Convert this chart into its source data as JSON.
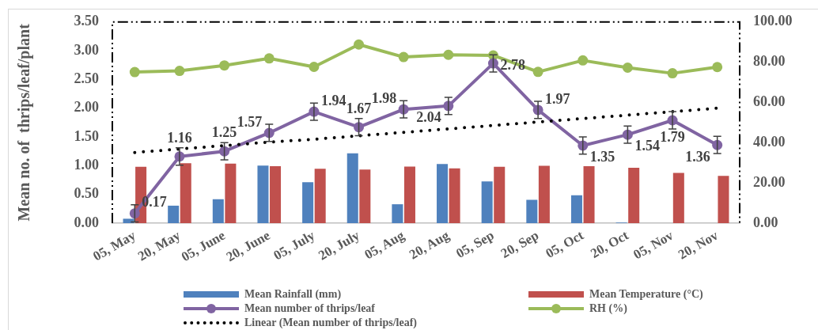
{
  "chart_data": {
    "type": "bar",
    "ylabel": "Mean no. of  thrips/leaf/plant",
    "categories": [
      "05, May",
      "20, May",
      "05, June",
      "20, June",
      "05, July",
      "20, July",
      "05, Aug",
      "20, Aug",
      "05, Sep",
      "20, Sep",
      "05, Oct",
      "20, Oct",
      "05, Nov",
      "20, Nov"
    ],
    "series": [
      {
        "name": "Mean Rainfall (mm)",
        "axis": "y2",
        "color": "#4f81bd",
        "values": [
          2.2,
          8.7,
          11.9,
          28.6,
          20.4,
          34.7,
          9.4,
          29.4,
          20.8,
          11.6,
          13.9,
          0.3,
          0,
          0
        ]
      },
      {
        "name": "Mean Temperature (°C)",
        "axis": "y2",
        "color": "#c0504d",
        "values": [
          28.0,
          29.8,
          29.6,
          28.3,
          27.0,
          26.7,
          28.1,
          27.2,
          28.0,
          28.5,
          28.3,
          27.5,
          25.0,
          23.5
        ]
      },
      {
        "name": "Mean number of thrips/leaf",
        "type": "line",
        "color": "#8064a2",
        "marker": "circle",
        "values": [
          0.17,
          1.16,
          1.25,
          1.57,
          1.94,
          1.67,
          1.98,
          2.04,
          2.78,
          1.97,
          1.35,
          1.54,
          1.79,
          1.36
        ],
        "errors": [
          0.15,
          0.15,
          0.15,
          0.15,
          0.15,
          0.15,
          0.15,
          0.15,
          0.15,
          0.15,
          0.15,
          0.15,
          0.15,
          0.15
        ],
        "value_labels": [
          "0.17",
          "1.16",
          "1.25",
          "1.57",
          "1.94",
          "1.67",
          "1.98",
          "2.04",
          "2.78",
          "1.97",
          "1.35",
          "1.54",
          "1.79",
          "1.36"
        ]
      },
      {
        "name": "RH (%)",
        "type": "line",
        "axis": "y2",
        "color": "#9bbb59",
        "marker": "circle",
        "values": [
          75.1,
          75.7,
          78.4,
          81.9,
          77.7,
          88.8,
          82.6,
          83.7,
          83.4,
          75.2,
          80.9,
          77.3,
          74.5,
          77.6
        ]
      },
      {
        "name": "Linear (Mean number of thrips/leaf)",
        "type": "line",
        "color": "#000000",
        "marker": "none",
        "line_style": "dotted",
        "values": [
          1.23,
          1.29,
          1.35,
          1.41,
          1.46,
          1.52,
          1.58,
          1.64,
          1.7,
          1.76,
          1.82,
          1.88,
          1.94,
          2.0
        ]
      }
    ],
    "ylim": [
      0,
      3.5
    ],
    "yticks": [
      {
        "value": 0,
        "label": "0.00"
      },
      {
        "value": 0.5,
        "label": "0.50"
      },
      {
        "value": 1,
        "label": "1.00"
      },
      {
        "value": 1.5,
        "label": "1.50"
      },
      {
        "value": 2,
        "label": "2.00"
      },
      {
        "value": 2.5,
        "label": "2.50"
      },
      {
        "value": 3,
        "label": "3.00"
      },
      {
        "value": 3.5,
        "label": "3.50"
      }
    ],
    "y2lim": [
      0,
      100
    ],
    "y2ticks": [
      {
        "value": 0,
        "label": "0.00"
      },
      {
        "value": 20,
        "label": "20.00"
      },
      {
        "value": 40,
        "label": "40.00"
      },
      {
        "value": 60,
        "label": "60.00"
      },
      {
        "value": 80,
        "label": "80.00"
      },
      {
        "value": 100,
        "label": "100.00"
      }
    ],
    "legend": "bottom"
  }
}
